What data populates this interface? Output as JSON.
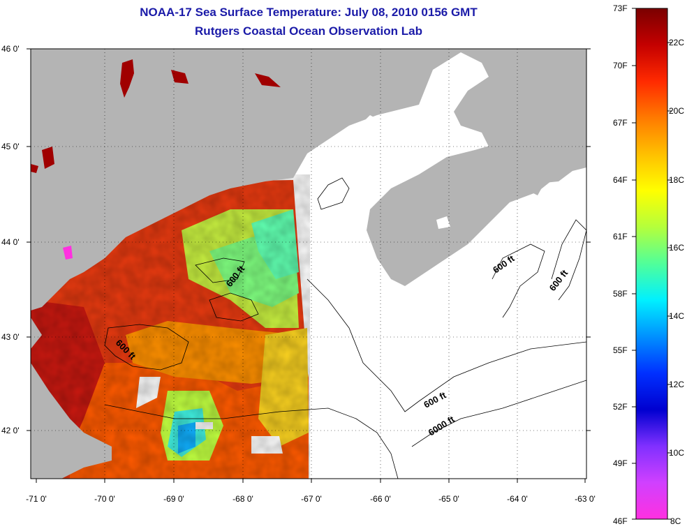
{
  "title": {
    "line1": "NOAA-17 Sea Surface Temperature:  July 08, 2010 0156 GMT",
    "line2": "Rutgers Coastal Ocean Observation Lab"
  },
  "map": {
    "lat_labels": [
      "46 0'",
      "45 0'",
      "44 0'",
      "43 0'",
      "42 0'"
    ],
    "lon_labels": [
      "-71 0'",
      "-70 0'",
      "-69 0'",
      "-68 0'",
      "-67 0'",
      "-66 0'",
      "-65 0'",
      "-64 0'",
      "-63 0'"
    ],
    "contour_labels": [
      "600 ft",
      "600 ft",
      "600 ft",
      "600 ft",
      "600 ft",
      "6000 ft"
    ],
    "colors": {
      "land": "#b4b4b4",
      "no_data_ocean": "#ffffff",
      "grid": "#000000"
    }
  },
  "colorbar": {
    "fahrenheit_labels": [
      "73F",
      "70F",
      "67F",
      "64F",
      "61F",
      "58F",
      "55F",
      "52F",
      "49F",
      "46F"
    ],
    "celsius_labels": [
      "22C",
      "20C",
      "18C",
      "16C",
      "14C",
      "12C",
      "10C",
      "8C"
    ],
    "gradient": [
      "#7a0000",
      "#c40000",
      "#ff2a00",
      "#ff7a00",
      "#ffc000",
      "#ffff00",
      "#b4ff3c",
      "#50ff9a",
      "#00f0ff",
      "#0090ff",
      "#0030ff",
      "#0000d0",
      "#8030ff",
      "#d040ff",
      "#ff30e0"
    ]
  }
}
